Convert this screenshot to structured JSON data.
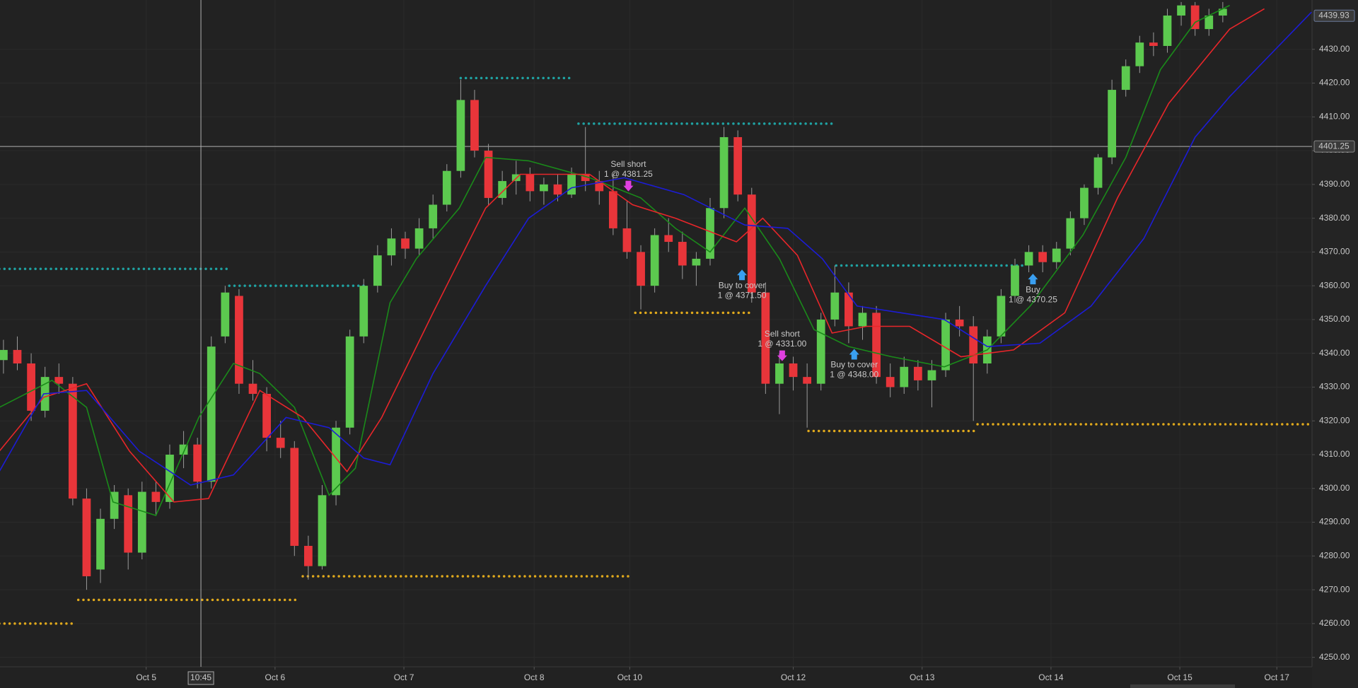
{
  "chart_data": {
    "type": "candlestick",
    "xlim": [
      -0.25,
      94.44
    ],
    "ylim": [
      4247.2,
      4444.6
    ],
    "grid": true,
    "up_color": "#5cc94f",
    "down_color": "#e8353a",
    "yticks": [
      {
        "value": 4250,
        "label": "4250.00"
      },
      {
        "value": 4260,
        "label": "4260.00"
      },
      {
        "value": 4270,
        "label": "4270.00"
      },
      {
        "value": 4280,
        "label": "4280.00"
      },
      {
        "value": 4290,
        "label": "4290.00"
      },
      {
        "value": 4300,
        "label": "4300.00"
      },
      {
        "value": 4310,
        "label": "4310.00"
      },
      {
        "value": 4320,
        "label": "4320.00"
      },
      {
        "value": 4330,
        "label": "4330.00"
      },
      {
        "value": 4340,
        "label": "4340.00"
      },
      {
        "value": 4350,
        "label": "4350.00"
      },
      {
        "value": 4360,
        "label": "4360.00"
      },
      {
        "value": 4370,
        "label": "4370.00"
      },
      {
        "value": 4380,
        "label": "4380.00"
      },
      {
        "value": 4390,
        "label": "4390.00"
      },
      {
        "value": 4400,
        "label": "4400.00"
      },
      {
        "value": 4410,
        "label": "4410.00"
      },
      {
        "value": 4420,
        "label": "4420.00"
      },
      {
        "value": 4430,
        "label": "4430.00"
      }
    ],
    "xticks": [
      {
        "value": 10.3,
        "label": "Oct 5"
      },
      {
        "value": 19.6,
        "label": "Oct 6"
      },
      {
        "value": 28.9,
        "label": "Oct 7"
      },
      {
        "value": 38.3,
        "label": "Oct 8"
      },
      {
        "value": 45.2,
        "label": "Oct 10"
      },
      {
        "value": 57,
        "label": "Oct 12"
      },
      {
        "value": 66.3,
        "label": "Oct 13"
      },
      {
        "value": 75.6,
        "label": "Oct 14"
      },
      {
        "value": 84.9,
        "label": "Oct 15"
      },
      {
        "value": 91.9,
        "label": "Oct 17"
      }
    ],
    "open": [
      4338,
      4341,
      4337,
      4323,
      4333,
      4331,
      4297,
      4276,
      4291,
      4298,
      4281,
      4299,
      4296,
      4310,
      4313,
      4302,
      4345,
      4357,
      4331,
      4328,
      4315,
      4312,
      4283,
      4277,
      4298,
      4318,
      4345,
      4360,
      4369,
      4374,
      4371,
      4377,
      4384,
      4394,
      4415,
      4400,
      4386,
      4391,
      4393,
      4388,
      4390,
      4387,
      4393,
      4391,
      4388,
      4377,
      4370,
      4360,
      4375,
      4373,
      4366,
      4368,
      4383,
      4404,
      4387,
      4358,
      4331,
      4337,
      4333,
      4331,
      4350,
      4358,
      4348,
      4352,
      4333,
      4330,
      4336,
      4332,
      4335,
      4350,
      4348,
      4337,
      4345,
      4357,
      4366,
      4370,
      4367,
      4371,
      4380,
      4389,
      4398,
      4418,
      4425,
      4432,
      4431,
      4440,
      4443,
      4436,
      4440
    ],
    "high": [
      4344,
      4345,
      4340,
      4336,
      4337,
      4333,
      4300,
      4294,
      4301,
      4300,
      4302,
      4302,
      4313,
      4317,
      4315,
      4345,
      4360,
      4359,
      4338,
      4330,
      4320,
      4314,
      4286,
      4301,
      4320,
      4347,
      4362,
      4372,
      4377,
      4376,
      4380,
      4387,
      4396,
      4421,
      4418,
      4402,
      4394,
      4397,
      4395,
      4392,
      4393,
      4395,
      4407,
      4394,
      4393,
      4385,
      4372,
      4377,
      4380,
      4376,
      4370,
      4386,
      4407,
      4406,
      4389,
      4361,
      4340,
      4339,
      4337,
      4352,
      4366,
      4361,
      4354,
      4354,
      4337,
      4339,
      4338,
      4338,
      4352,
      4354,
      4351,
      4347,
      4359,
      4368,
      4372,
      4372,
      4373,
      4382,
      4390,
      4399,
      4421,
      4427,
      4434,
      4435,
      4442,
      4444,
      4444,
      4442,
      4444
    ],
    "low": [
      4334,
      4335,
      4320,
      4321,
      4328,
      4295,
      4270,
      4272,
      4288,
      4276,
      4279,
      4292,
      4294,
      4306,
      4300,
      4300,
      4343,
      4328,
      4326,
      4311,
      4309,
      4280,
      4273,
      4276,
      4295,
      4316,
      4343,
      4358,
      4366,
      4368,
      4369,
      4374,
      4382,
      4392,
      4398,
      4384,
      4384,
      4387,
      4385,
      4384,
      4385,
      4386,
      4388,
      4384,
      4375,
      4368,
      4353,
      4358,
      4370,
      4362,
      4360,
      4366,
      4380,
      4385,
      4355,
      4328,
      4322,
      4329,
      4318,
      4329,
      4348,
      4343,
      4344,
      4331,
      4327,
      4328,
      4329,
      4324,
      4333,
      4345,
      4320,
      4334,
      4343,
      4355,
      4364,
      4364,
      4365,
      4369,
      4378,
      4387,
      4396,
      4416,
      4423,
      4428,
      4429,
      4437,
      4434,
      4434,
      4438
    ],
    "close": [
      4341,
      4337,
      4323,
      4333,
      4331,
      4297,
      4274,
      4291,
      4299,
      4281,
      4299,
      4296,
      4310,
      4313,
      4302,
      4342,
      4358,
      4331,
      4328,
      4315,
      4312,
      4283,
      4277,
      4298,
      4318,
      4345,
      4360,
      4369,
      4374,
      4371,
      4377,
      4384,
      4394,
      4415,
      4400,
      4386,
      4391,
      4393,
      4388,
      4390,
      4387,
      4393,
      4391,
      4388,
      4377,
      4370,
      4360,
      4375,
      4373,
      4366,
      4368,
      4383,
      4404,
      4387,
      4358,
      4331,
      4337,
      4333,
      4331,
      4350,
      4358,
      4348,
      4352,
      4333,
      4330,
      4336,
      4332,
      4335,
      4350,
      4348,
      4337,
      4345,
      4357,
      4366,
      4370,
      4367,
      4371,
      4380,
      4389,
      4398,
      4418,
      4425,
      4432,
      4431,
      4440,
      4443,
      4436,
      4440,
      4442
    ],
    "series": [
      {
        "color": "#1a8a1a",
        "x": [
          -0.3,
          3.5,
          6,
          7.9,
          11,
          14.1,
          16.6,
          18.5,
          21,
          23.5,
          25.4,
          27.9,
          29.8,
          32.9,
          34.8,
          37.9,
          42.3,
          46,
          48.5,
          51,
          53.5,
          56,
          58.5,
          61,
          64.1,
          67.9,
          71,
          74.1,
          77.9,
          81,
          83.5,
          86,
          88.5
        ],
        "values": [
          4324,
          4332,
          4324,
          4296,
          4292,
          4321,
          4337,
          4334,
          4324,
          4298,
          4306,
          4355,
          4368,
          4383,
          4398,
          4397,
          4392,
          4386,
          4377,
          4370,
          4383,
          4368,
          4347,
          4342,
          4339,
          4336,
          4341,
          4354,
          4375,
          4398,
          4424,
          4438,
          4443
        ]
      },
      {
        "color": "#e8262a",
        "x": [
          -0.3,
          2.9,
          6,
          9.1,
          12.3,
          14.8,
          18.5,
          21.6,
          24.8,
          27.3,
          31,
          34.8,
          37.3,
          42.3,
          45.4,
          48.5,
          52.9,
          54.8,
          57.3,
          59.8,
          62.3,
          65.4,
          69.1,
          72.9,
          76.6,
          80.4,
          84.1,
          88.5,
          91
        ],
        "values": [
          4311,
          4327,
          4331,
          4311,
          4296,
          4297,
          4329,
          4321,
          4305,
          4321,
          4352,
          4383,
          4393,
          4393,
          4384,
          4380,
          4373,
          4380,
          4369,
          4346,
          4348,
          4348,
          4339,
          4341,
          4352,
          4386,
          4414,
          4436,
          4442
        ]
      },
      {
        "color": "#1c1cd6",
        "x": [
          -0.3,
          2.9,
          6,
          9.8,
          13.5,
          16.6,
          20.4,
          23.5,
          26,
          27.9,
          31,
          34.8,
          37.9,
          41,
          44.8,
          49.1,
          53.5,
          56.6,
          59.1,
          61.6,
          64.8,
          67.9,
          71,
          74.8,
          78.5,
          82.3,
          86,
          88.5,
          94.4
        ],
        "values": [
          4305,
          4328,
          4329,
          4311,
          4301,
          4304,
          4321,
          4318,
          4309,
          4307,
          4334,
          4360,
          4380,
          4389,
          4392,
          4387,
          4378,
          4377,
          4368,
          4354,
          4352,
          4350,
          4342,
          4343,
          4354,
          4374,
          4404,
          4416,
          4441
        ]
      }
    ],
    "levels": [
      {
        "color": "#1fa3a3",
        "x": [
          -0.3,
          16.1
        ],
        "value": 4365
      },
      {
        "color": "#1fa3a3",
        "x": [
          16.3,
          26
        ],
        "value": 4360
      },
      {
        "color": "#1fa3a3",
        "x": [
          33,
          41.1
        ],
        "value": 4421.5
      },
      {
        "color": "#1fa3a3",
        "x": [
          41.5,
          59.9
        ],
        "value": 4408
      },
      {
        "color": "#1fa3a3",
        "x": [
          60.1,
          73.8
        ],
        "value": 4366
      },
      {
        "color": "#e0a91c",
        "x": [
          -0.3,
          5.1
        ],
        "value": 4260
      },
      {
        "color": "#e0a91c",
        "x": [
          5.4,
          21.3
        ],
        "value": 4267
      },
      {
        "color": "#e0a91c",
        "x": [
          21.6,
          45.3
        ],
        "value": 4274
      },
      {
        "color": "#e0a91c",
        "x": [
          45.6,
          53.8
        ],
        "value": 4352
      },
      {
        "color": "#e0a91c",
        "x": [
          58.1,
          70.1
        ],
        "value": 4317
      },
      {
        "color": "#e0a91c",
        "x": [
          70.3,
          94.4
        ],
        "value": 4319
      }
    ],
    "trades": [
      {
        "action": "Sell short",
        "label": "1 @ 4381.25",
        "x": 45.1,
        "price": 4381.25,
        "marker": "down",
        "color": "#e040e0"
      },
      {
        "action": "Buy to cover",
        "label": "1 @ 4371.50",
        "x": 53.3,
        "price": 4371.5,
        "marker": "up",
        "color": "#3a9ff0"
      },
      {
        "action": "Sell short",
        "label": "1 @ 4331.00",
        "x": 56.2,
        "price": 4331,
        "marker": "down",
        "color": "#e040e0"
      },
      {
        "action": "Buy to cover",
        "label": "1 @ 4348.00",
        "x": 61.4,
        "price": 4348,
        "marker": "up",
        "color": "#3a9ff0"
      },
      {
        "action": "Buy",
        "label": "1 @ 4370.25",
        "x": 74.3,
        "price": 4370.25,
        "marker": "up",
        "color": "#3a9ff0"
      }
    ],
    "crosshair": {
      "x": 14.25,
      "x_label": "10:45",
      "y": 4401.25
    },
    "last_price": 4439.93
  }
}
